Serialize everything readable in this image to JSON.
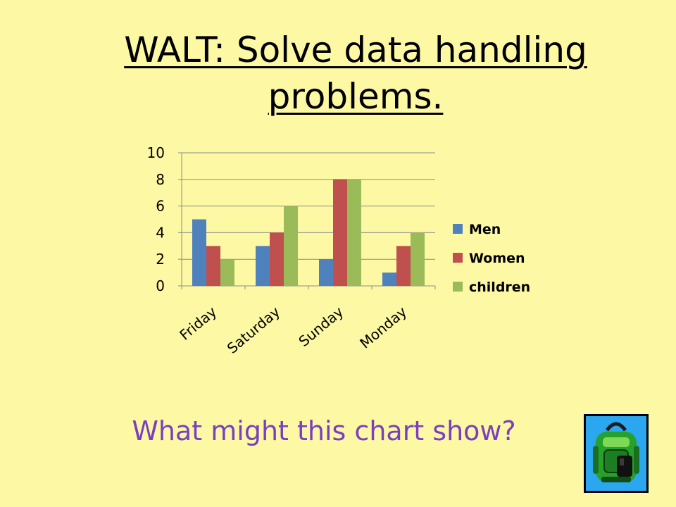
{
  "title_line1": "WALT: Solve data handling",
  "title_line2": "problems.",
  "question": "What might this chart show?",
  "chart_data": {
    "type": "bar",
    "categories": [
      "Friday",
      "Saturday",
      "Sunday",
      "Monday"
    ],
    "series": [
      {
        "name": "Men",
        "values": [
          5,
          3,
          2,
          1
        ],
        "color": "#4f81bd"
      },
      {
        "name": "Women",
        "values": [
          3,
          4,
          8,
          3
        ],
        "color": "#c0504d"
      },
      {
        "name": "children",
        "values": [
          2,
          6,
          8,
          4
        ],
        "color": "#9bbb59"
      }
    ],
    "yticks": [
      0,
      2,
      4,
      6,
      8,
      10
    ],
    "ylim": [
      0,
      10
    ],
    "grid": true,
    "legend": "right"
  },
  "decoration": {
    "icon": "backpack-icon",
    "box_color": "#2aa7ee"
  }
}
